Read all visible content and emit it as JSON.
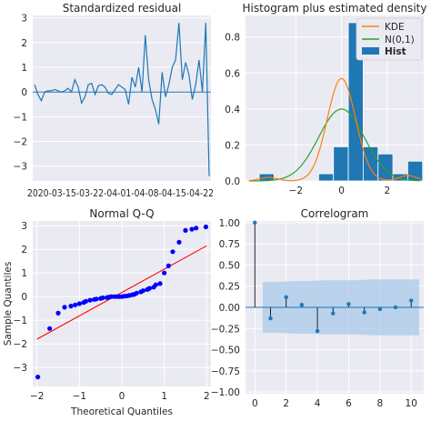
{
  "colors": {
    "panel_bg": "#eaeaf2",
    "grid": "#ffffff",
    "blue": "#1f77b4",
    "orange": "#ff7f0e",
    "green": "#2ca02c",
    "qq_points": "#0000ff",
    "qq_line": "#ff0000",
    "band": "#a8c8e8"
  },
  "chart_data": [
    {
      "type": "line",
      "title": "Standardized residual",
      "xlabel": "",
      "ylabel": "",
      "ylim": [
        -3.6,
        3.1
      ],
      "yticks": [
        "3",
        "2",
        "1",
        "0",
        "−1",
        "−2",
        "−3"
      ],
      "ytick_values": [
        3,
        2,
        1,
        0,
        -1,
        -2,
        -3
      ],
      "xtick_labels_text": "2020-03-15-03-22-04-01-04-08-04-15-04-22",
      "zero_line": true,
      "values": [
        0.3,
        -0.1,
        -0.35,
        0.0,
        0.05,
        0.05,
        0.1,
        0.05,
        0.0,
        0.05,
        0.15,
        0.0,
        0.5,
        0.2,
        -0.45,
        -0.2,
        0.3,
        0.35,
        -0.1,
        0.25,
        0.3,
        0.2,
        -0.05,
        -0.1,
        0.1,
        0.3,
        0.2,
        0.1,
        -0.5,
        0.6,
        0.2,
        1.0,
        0.0,
        2.3,
        0.5,
        -0.3,
        -0.7,
        -1.3,
        0.8,
        -0.2,
        0.3,
        1.0,
        1.3,
        2.8,
        0.5,
        1.2,
        0.7,
        -0.3,
        0.3,
        1.3,
        0.0,
        2.8,
        -3.4
      ]
    },
    {
      "type": "bar",
      "title": "Histogram plus estimated density",
      "xlim": [
        -4.2,
        3.6
      ],
      "ylim": [
        0,
        0.92
      ],
      "xticks": [
        "−2",
        "0",
        "2"
      ],
      "xtick_values": [
        -2,
        0,
        2
      ],
      "yticks": [
        "0.8",
        "0.6",
        "0.4",
        "0.2",
        "0.0"
      ],
      "ytick_values": [
        0.8,
        0.6,
        0.4,
        0.2,
        0.0
      ],
      "legend": [
        "KDE",
        "N(0,1)",
        "Hist"
      ],
      "legend_position": "top-right",
      "bins": [
        {
          "x0": -3.6,
          "x1": -2.95,
          "h": 0.04
        },
        {
          "x0": -2.95,
          "x1": -2.3,
          "h": 0.0
        },
        {
          "x0": -2.3,
          "x1": -1.65,
          "h": 0.0
        },
        {
          "x0": -1.65,
          "x1": -1.0,
          "h": 0.0
        },
        {
          "x0": -1.0,
          "x1": -0.35,
          "h": 0.04
        },
        {
          "x0": -0.35,
          "x1": 0.3,
          "h": 0.19
        },
        {
          "x0": 0.3,
          "x1": 0.95,
          "h": 0.88
        },
        {
          "x0": 0.95,
          "x1": 1.6,
          "h": 0.19
        },
        {
          "x0": 1.6,
          "x1": 2.25,
          "h": 0.15
        },
        {
          "x0": 2.25,
          "x1": 2.9,
          "h": 0.04
        },
        {
          "x0": 2.9,
          "x1": 3.55,
          "h": 0.11
        }
      ],
      "kde_peak": 0.57,
      "kde_center": 0.0,
      "normal_peak": 0.4
    },
    {
      "type": "scatter",
      "title": "Normal Q-Q",
      "xlabel": "Theoretical Quantiles",
      "ylabel": "Sample Quantiles",
      "xlim": [
        -2.1,
        2.1
      ],
      "ylim": [
        -3.8,
        3.2
      ],
      "xticks": [
        "−2",
        "−1",
        "0",
        "1",
        "2"
      ],
      "xtick_values": [
        -2,
        -1,
        0,
        1,
        2
      ],
      "yticks": [
        "3",
        "2",
        "1",
        "0",
        "−1",
        "−2",
        "−3"
      ],
      "ytick_values": [
        3,
        2,
        1,
        0,
        -1,
        -2,
        -3
      ],
      "line": {
        "x": [
          -2.0,
          2.0
        ],
        "y": [
          -1.8,
          2.15
        ]
      },
      "points": {
        "x": [
          -1.98,
          -1.7,
          -1.5,
          -1.35,
          -1.2,
          -1.1,
          -1.0,
          -0.9,
          -0.85,
          -0.75,
          -0.65,
          -0.6,
          -0.5,
          -0.45,
          -0.35,
          -0.3,
          -0.25,
          -0.18,
          -0.12,
          -0.06,
          0.0,
          0.06,
          0.12,
          0.18,
          0.25,
          0.3,
          0.35,
          0.45,
          0.5,
          0.6,
          0.65,
          0.75,
          0.8,
          0.9,
          1.0,
          1.1,
          1.2,
          1.35,
          1.5,
          1.65,
          1.75,
          1.98
        ],
        "y": [
          -3.4,
          -1.35,
          -0.7,
          -0.45,
          -0.4,
          -0.35,
          -0.3,
          -0.25,
          -0.2,
          -0.15,
          -0.12,
          -0.1,
          -0.08,
          -0.05,
          -0.04,
          -0.02,
          0.0,
          0.0,
          0.0,
          0.0,
          0.0,
          0.02,
          0.03,
          0.05,
          0.08,
          0.1,
          0.15,
          0.2,
          0.25,
          0.3,
          0.35,
          0.4,
          0.5,
          0.55,
          1.0,
          1.3,
          1.9,
          2.3,
          2.8,
          2.85,
          2.9,
          2.95
        ]
      }
    },
    {
      "type": "bar",
      "title": "Correlogram",
      "xlim": [
        -0.6,
        10.8
      ],
      "ylim": [
        -1.02,
        1.02
      ],
      "xticks": [
        "0",
        "2",
        "4",
        "6",
        "8",
        "10"
      ],
      "xtick_values": [
        0,
        2,
        4,
        6,
        8,
        10
      ],
      "yticks": [
        "1.00",
        "0.75",
        "0.50",
        "0.25",
        "0.00",
        "−0.25",
        "−0.50",
        "−0.75",
        "−1.00"
      ],
      "ytick_values": [
        1.0,
        0.75,
        0.5,
        0.25,
        0.0,
        -0.25,
        -0.5,
        -0.75,
        -1.0
      ],
      "lags": [
        0,
        1,
        2,
        3,
        4,
        5,
        6,
        7,
        8,
        9,
        10
      ],
      "acf": [
        1.0,
        -0.13,
        0.12,
        0.03,
        -0.28,
        -0.07,
        0.04,
        -0.06,
        -0.02,
        0.0,
        0.08
      ],
      "confidence_band": {
        "lag_start": 0.5,
        "lag_end": 10.5,
        "upper": [
          0.3,
          0.3,
          0.31,
          0.31,
          0.32,
          0.32,
          0.32,
          0.33,
          0.33,
          0.33,
          0.33
        ]
      }
    }
  ]
}
